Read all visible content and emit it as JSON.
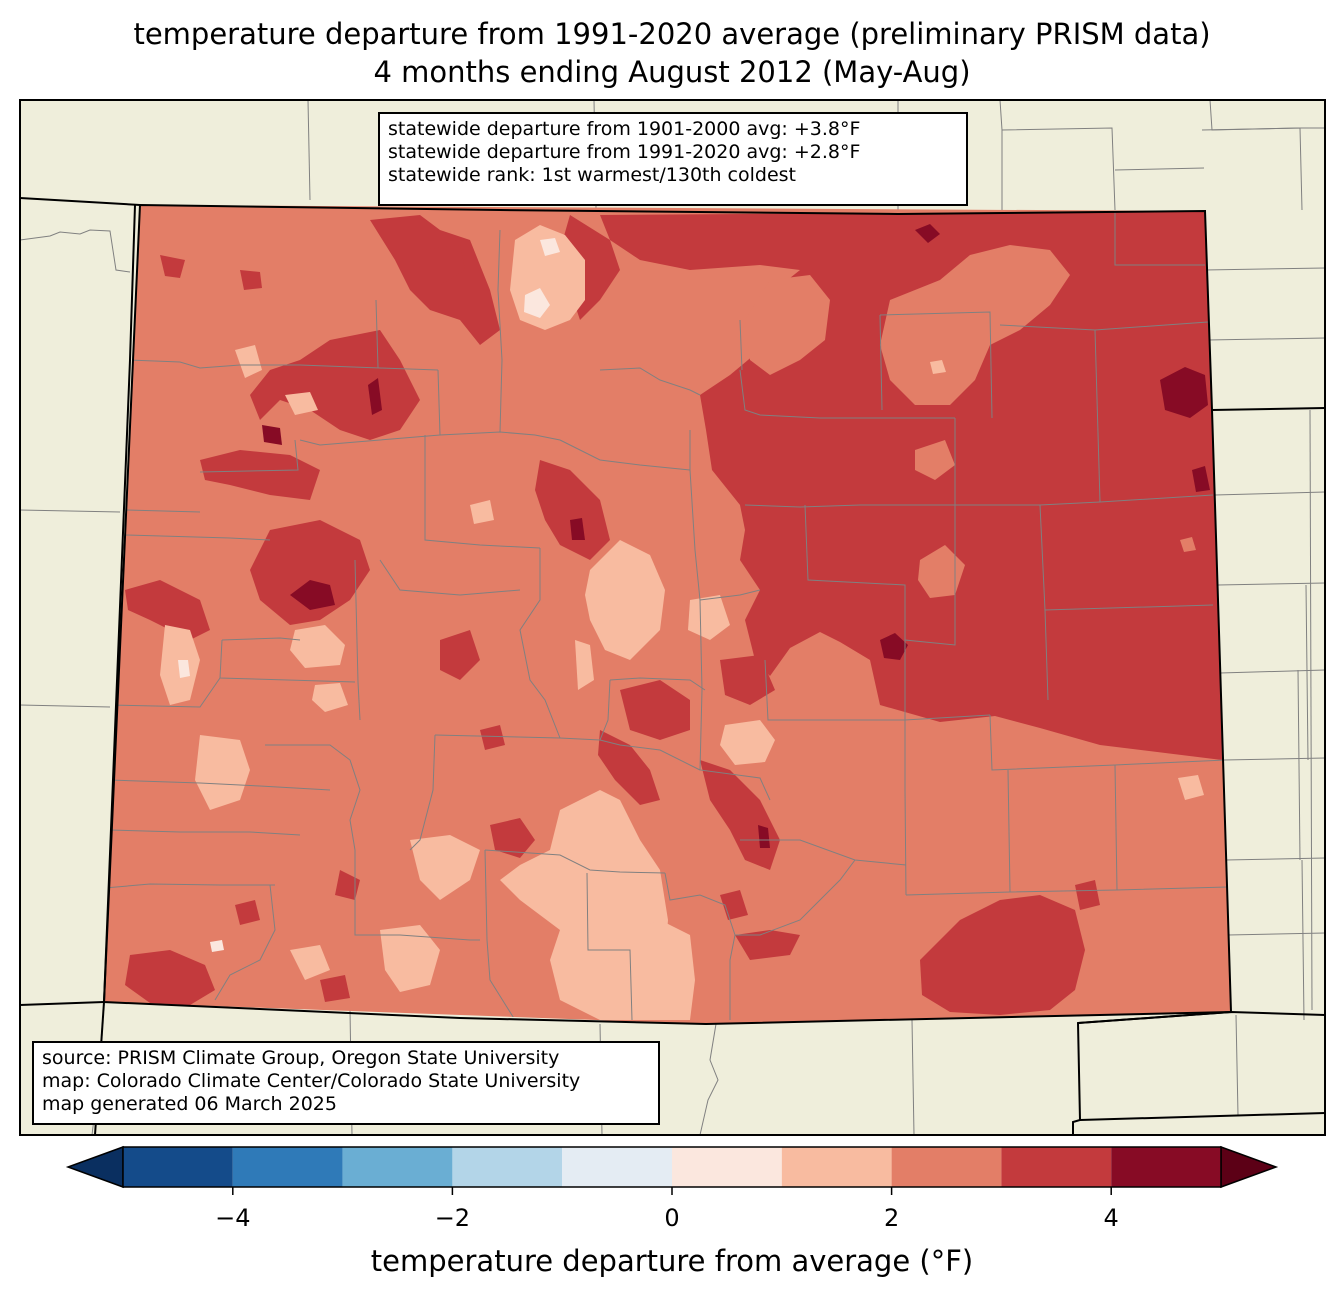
{
  "title_line1": "temperature departure from 1991-2020 average (preliminary PRISM data)",
  "title_line2": "4 months ending August 2012 (May-Aug)",
  "stats": {
    "line1": "statewide departure from 1901-2000 avg: +3.8°F",
    "line2": "statewide departure from 1991-2020 avg: +2.8°F",
    "line3": "statewide rank: 1st warmest/130th coldest"
  },
  "source": {
    "line1": "source: PRISM Climate Group, Oregon State University",
    "line2": "map: Colorado Climate Center/Colorado State University",
    "line3": "map generated 06 March 2025"
  },
  "colorbar": {
    "label": "temperature departure from average (°F)",
    "min": -5,
    "max": 5,
    "extend": "both",
    "ticks": [
      {
        "value": -4,
        "label": "−4"
      },
      {
        "value": -2,
        "label": "−2"
      },
      {
        "value": 0,
        "label": "0"
      },
      {
        "value": 2,
        "label": "2"
      },
      {
        "value": 4,
        "label": "4"
      }
    ],
    "bins": [
      {
        "from": -5,
        "to": -4,
        "color": "#144b8a"
      },
      {
        "from": -4,
        "to": -3,
        "color": "#2f7ab8"
      },
      {
        "from": -3,
        "to": -2,
        "color": "#6aaed3"
      },
      {
        "from": -2,
        "to": -1,
        "color": "#b3d5e8"
      },
      {
        "from": -1,
        "to": 0,
        "color": "#e4ecf3"
      },
      {
        "from": 0,
        "to": 1,
        "color": "#fbe7de"
      },
      {
        "from": 1,
        "to": 2,
        "color": "#f8bba0"
      },
      {
        "from": 2,
        "to": 3,
        "color": "#e37e67"
      },
      {
        "from": 3,
        "to": 4,
        "color": "#c33a3d"
      },
      {
        "from": 4,
        "to": 5,
        "color": "#870b25"
      }
    ],
    "under_color": "#0a2f60",
    "over_color": "#5c0016"
  },
  "colors": {
    "land": "#efeedb",
    "county_lines": "#808080",
    "state_lines": "#000000"
  }
}
